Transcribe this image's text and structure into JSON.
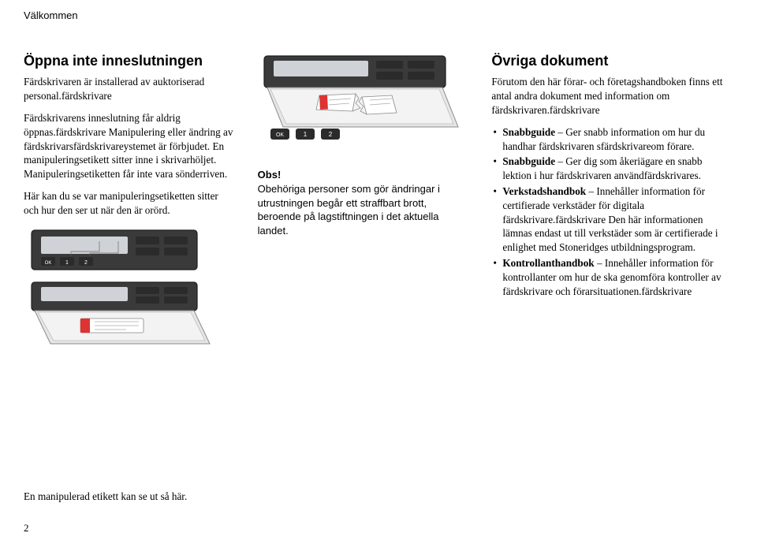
{
  "header": "Välkommen",
  "col1": {
    "heading": "Öppna inte inneslutningen",
    "p1": "Färdskrivaren är installerad av auktoriserad personal.färdskrivare",
    "p2": "Färdskrivarens inneslutning får aldrig öppnas.färdskrivare Manipulering eller ändring av färdskrivarsfärdskrivareystemet är förbjudet. En manipuleringsetikett sitter inne i skrivarhöljet. Manipuleringsetiketten får inte vara sönderriven.",
    "p3": "Här kan du se var manipuleringsetiketten sitter och hur den ser ut när den är orörd."
  },
  "col2": {
    "obs_head": "Obs!",
    "obs_body": " Obehöriga personer som gör ändringar i utrustningen begår ett straffbart brott, beroende på lagstiftningen i det aktuella landet."
  },
  "col3": {
    "heading": "Övriga dokument",
    "intro": "Förutom den här förar- och företagshandboken finns ett antal andra dokument med information om färdskrivaren.färdskrivare",
    "items": [
      {
        "bold": "Snabbguide",
        "rest": " – Ger snabb information om hur du handhar färdskrivaren sfärdskrivareom förare."
      },
      {
        "bold": "Snabbguide",
        "rest": " – Ger dig som åkeriägare en snabb lektion i hur färdskrivaren användfärdskrivares."
      },
      {
        "bold": "Verkstadshandbok",
        "rest": " – Innehåller information för certifierade verkstäder för digitala färdskrivare.färdskrivare Den här informationen lämnas endast ut till verkstäder som är certifierade i enlighet med Stoneridges utbildningsprogram."
      },
      {
        "bold": "Kontrollanthandbok",
        "rest": " – Innehåller information för kontrollanter om hur de ska genomföra kontroller av färdskrivare och förarsituationen.färdskrivare"
      }
    ]
  },
  "footer": {
    "caption": "En manipulerad etikett kan se ut så här.",
    "page": "2"
  },
  "fig": {
    "body_fill": "#3a3a3a",
    "body_stroke": "#1c1c1c",
    "screen_fill": "#cfd2d6",
    "btn_fill": "#2b2b2b",
    "btn_text": "#ffffff",
    "outline": "#6a6a6a",
    "label_accent": "#d33"
  }
}
